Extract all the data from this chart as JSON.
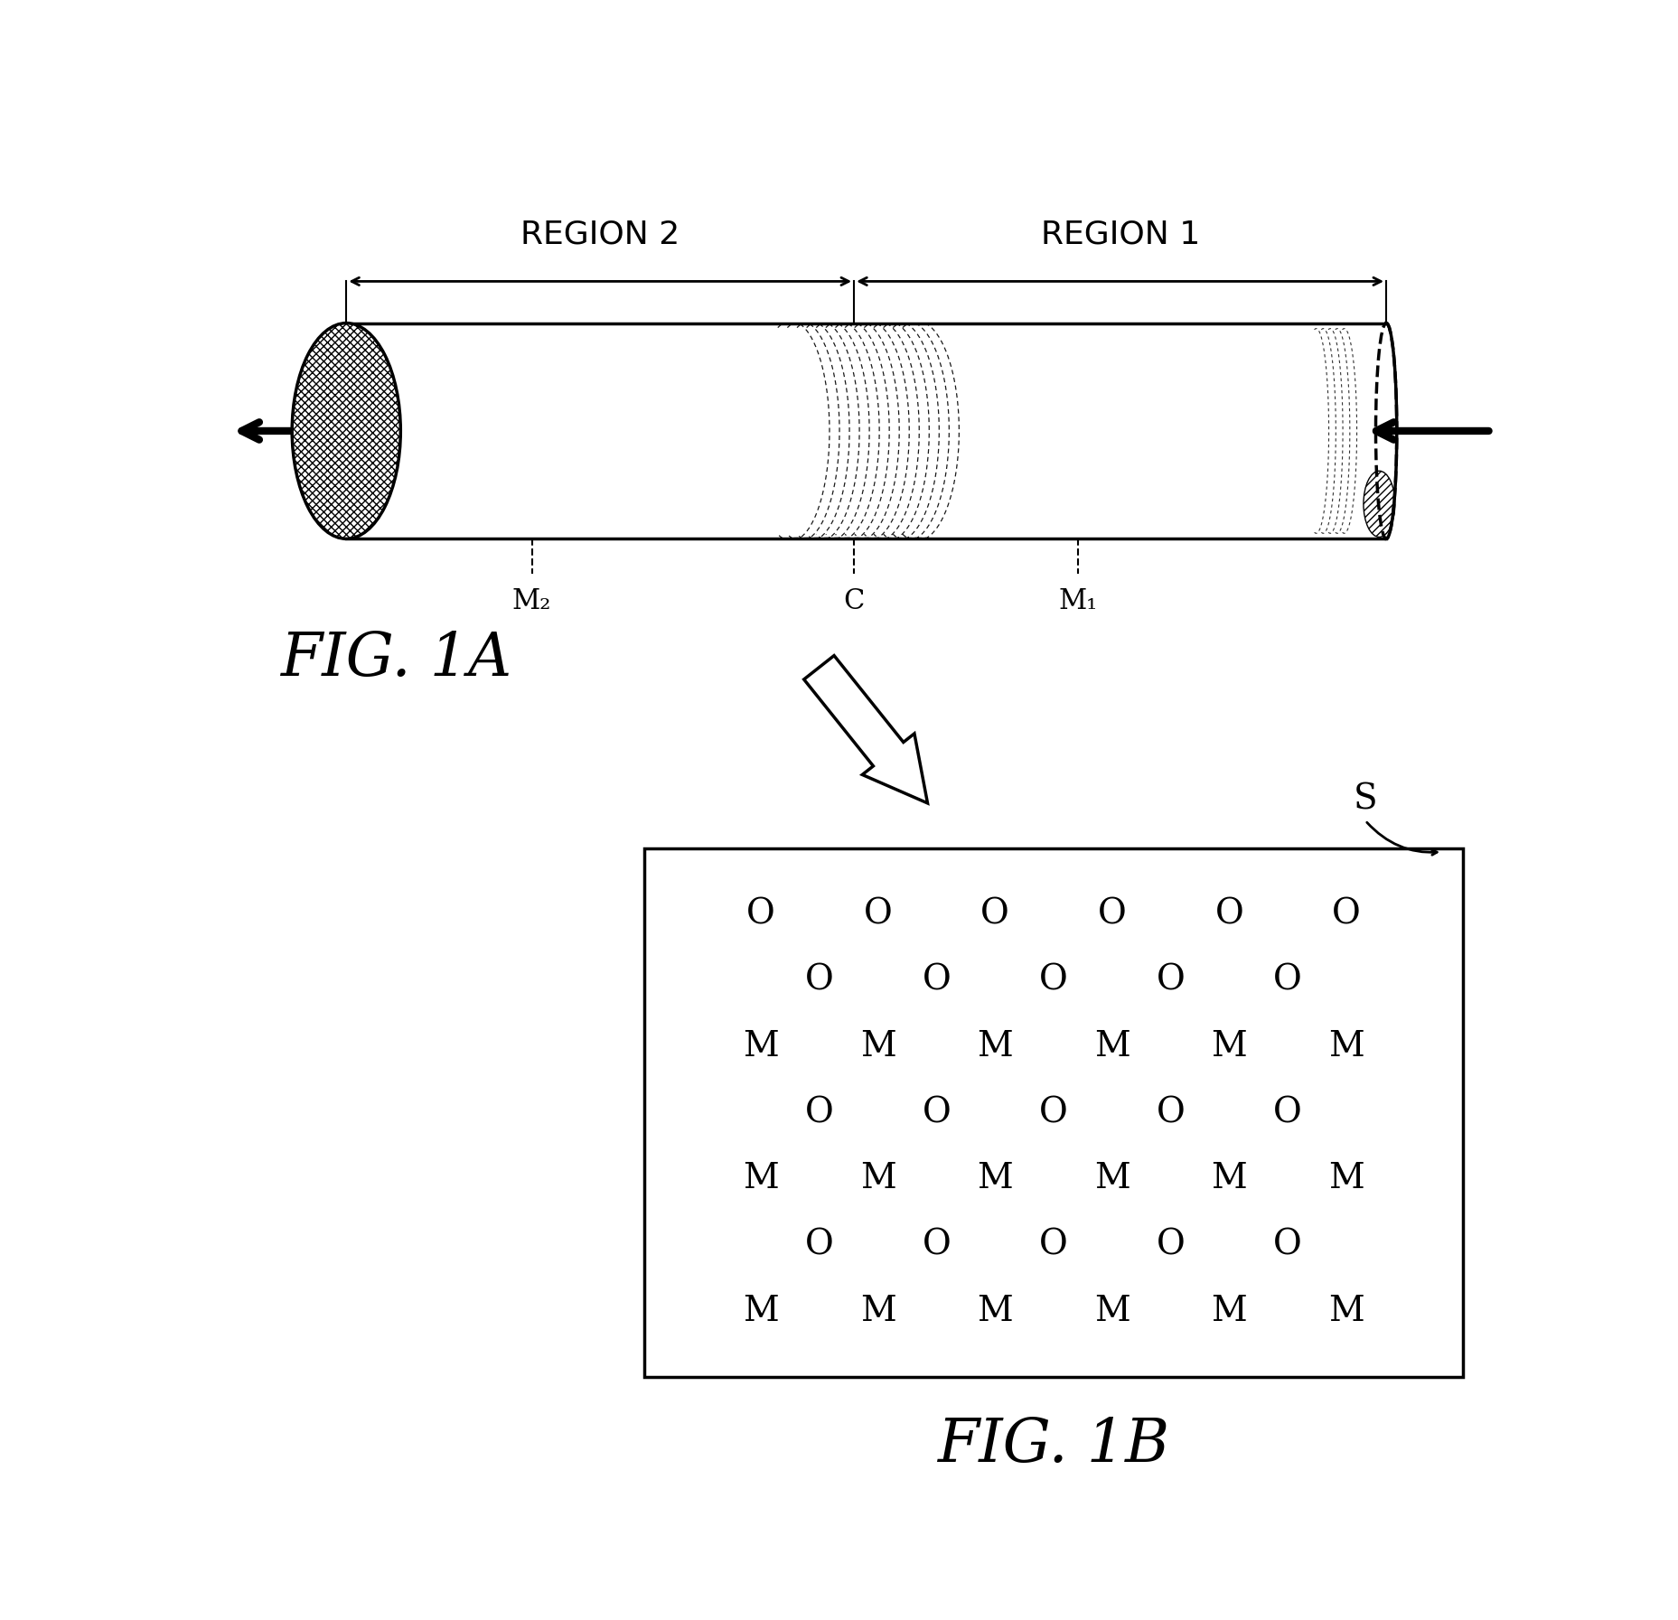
{
  "region1_label": "REGION 1",
  "region2_label": "REGION 2",
  "fig1a_label": "FIG. 1A",
  "fig1b_label": "FIG. 1B",
  "m1_label": "M₁",
  "m2_label": "M₂",
  "c_label": "C",
  "s_label": "S",
  "bg_color": "#ffffff"
}
